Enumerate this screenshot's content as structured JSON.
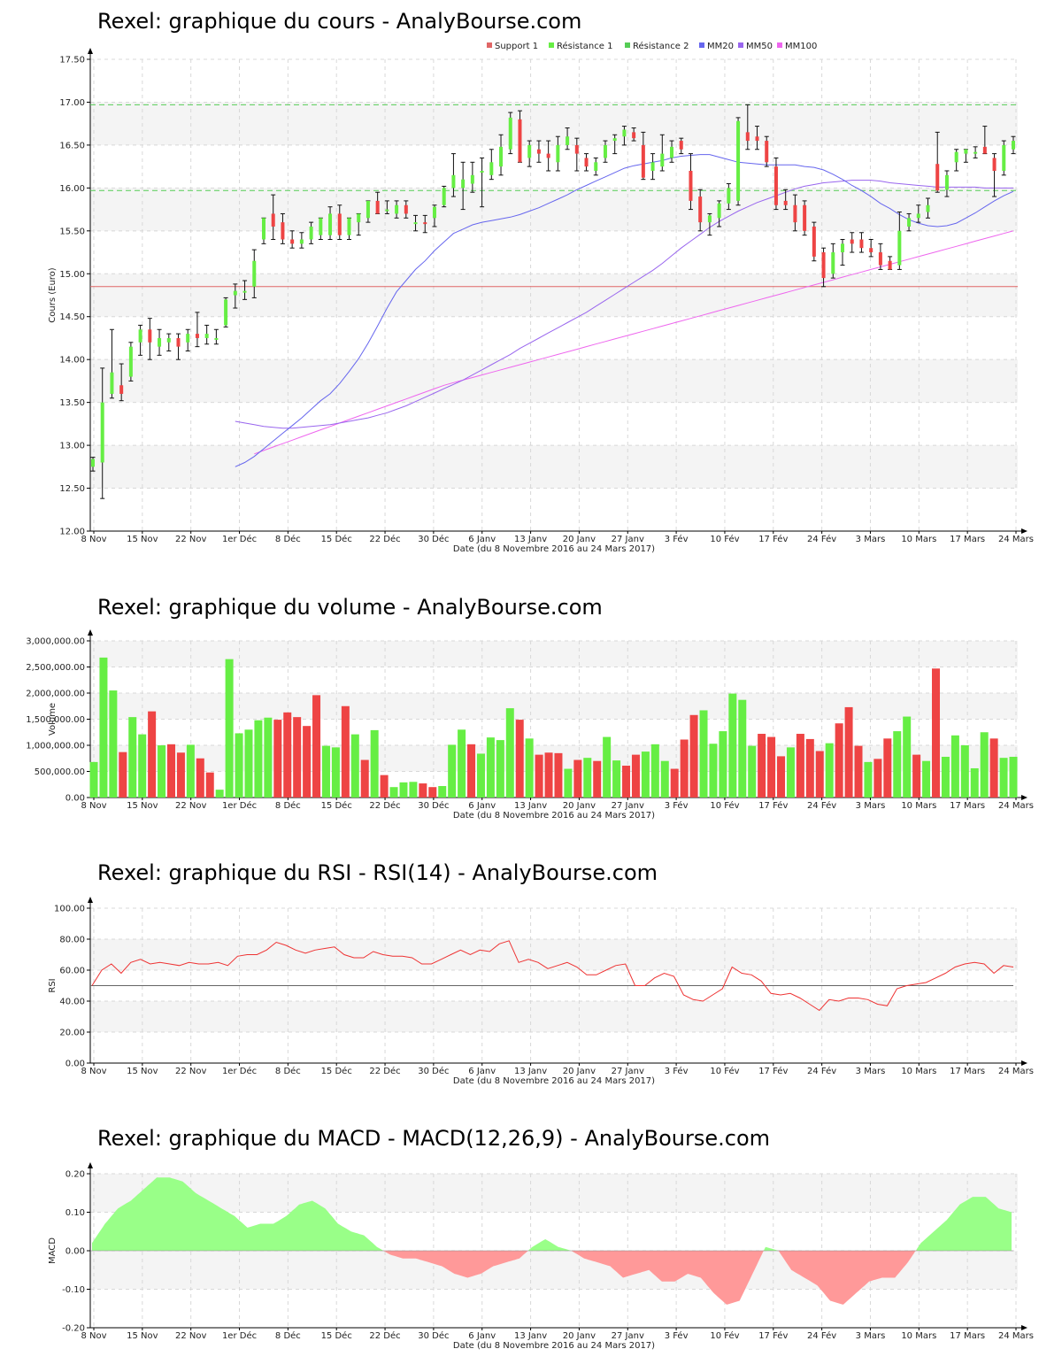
{
  "titles": {
    "price": "Rexel: graphique du cours - AnalyBourse.com",
    "volume": "Rexel: graphique du volume - AnalyBourse.com",
    "rsi": "Rexel: graphique du RSI - RSI(14) - AnalyBourse.com",
    "macd": "Rexel: graphique du MACD - MACD(12,26,9) - AnalyBourse.com"
  },
  "colors": {
    "up": "#66ee44",
    "down": "#ee4444",
    "support": "#e06666",
    "resistance": "#55cc55",
    "mm20": "#6666ee",
    "mm50": "#9966ee",
    "mm100": "#ee66ee",
    "rsi": "#ee3333",
    "macd_pos": "#99ff88",
    "macd_neg": "#ff9999",
    "band": "#f4f4f4",
    "grid": "#d8d8d8"
  },
  "x_axis": {
    "label": "Date (du 8 Novembre 2016 au 24 Mars 2017)",
    "ticks": [
      "8 Nov",
      "15 Nov",
      "22 Nov",
      "1er Déc",
      "8 Déc",
      "15 Déc",
      "22 Déc",
      "30 Déc",
      "6 Janv",
      "13 Janv",
      "20 Janv",
      "27 Janv",
      "3 Fév",
      "10 Fév",
      "17 Fév",
      "24 Fév",
      "3 Mars",
      "10 Mars",
      "17 Mars",
      "24 Mars"
    ]
  },
  "chart_data": [
    {
      "type": "candlestick",
      "title": "Rexel: graphique du cours - AnalyBourse.com",
      "ylabel": "Cours (Euro)",
      "ylim": [
        12.0,
        17.5
      ],
      "yticks": [
        "12.00",
        "12.50",
        "13.00",
        "13.50",
        "14.00",
        "14.50",
        "15.00",
        "15.50",
        "16.00",
        "16.50",
        "17.00",
        "17.50"
      ],
      "legend": [
        "Support 1",
        "Résistance 1",
        "Résistance 2",
        "MM20",
        "MM50",
        "MM100"
      ],
      "support_1": 14.85,
      "resistance_1": 15.97,
      "resistance_2": 16.97,
      "ohlc": [
        [
          12.75,
          12.86,
          12.7,
          12.84
        ],
        [
          12.8,
          13.9,
          12.38,
          13.5
        ],
        [
          13.6,
          14.35,
          13.55,
          13.85
        ],
        [
          13.7,
          13.95,
          13.52,
          13.6
        ],
        [
          13.8,
          14.2,
          13.75,
          14.15
        ],
        [
          14.2,
          14.4,
          14.05,
          14.35
        ],
        [
          14.35,
          14.48,
          14.0,
          14.2
        ],
        [
          14.15,
          14.35,
          14.05,
          14.25
        ],
        [
          14.2,
          14.3,
          14.1,
          14.25
        ],
        [
          14.25,
          14.3,
          14.0,
          14.15
        ],
        [
          14.2,
          14.35,
          14.1,
          14.3
        ],
        [
          14.3,
          14.55,
          14.15,
          14.25
        ],
        [
          14.25,
          14.4,
          14.18,
          14.3
        ],
        [
          14.25,
          14.35,
          14.18,
          14.25
        ],
        [
          14.4,
          14.72,
          14.38,
          14.7
        ],
        [
          14.75,
          14.88,
          14.6,
          14.8
        ],
        [
          14.78,
          14.92,
          14.7,
          14.8
        ],
        [
          14.85,
          15.28,
          14.72,
          15.15
        ],
        [
          15.4,
          15.65,
          15.35,
          15.65
        ],
        [
          15.7,
          15.92,
          15.4,
          15.55
        ],
        [
          15.6,
          15.7,
          15.35,
          15.4
        ],
        [
          15.4,
          15.5,
          15.3,
          15.35
        ],
        [
          15.35,
          15.48,
          15.3,
          15.4
        ],
        [
          15.4,
          15.6,
          15.35,
          15.55
        ],
        [
          15.45,
          15.65,
          15.4,
          15.65
        ],
        [
          15.45,
          15.78,
          15.4,
          15.7
        ],
        [
          15.7,
          15.8,
          15.4,
          15.45
        ],
        [
          15.45,
          15.65,
          15.4,
          15.65
        ],
        [
          15.6,
          15.7,
          15.45,
          15.7
        ],
        [
          15.65,
          15.85,
          15.6,
          15.85
        ],
        [
          15.85,
          15.95,
          15.7,
          15.7
        ],
        [
          15.75,
          15.85,
          15.7,
          15.75
        ],
        [
          15.7,
          15.85,
          15.65,
          15.8
        ],
        [
          15.8,
          15.85,
          15.65,
          15.7
        ],
        [
          15.6,
          15.68,
          15.5,
          15.6
        ],
        [
          15.6,
          15.68,
          15.48,
          15.58
        ],
        [
          15.65,
          15.8,
          15.55,
          15.78
        ],
        [
          15.8,
          16.02,
          15.78,
          16.0
        ],
        [
          16.0,
          16.4,
          15.9,
          16.15
        ],
        [
          16.0,
          16.3,
          15.75,
          16.1
        ],
        [
          16.05,
          16.3,
          15.95,
          16.15
        ],
        [
          16.2,
          16.35,
          15.78,
          16.2
        ],
        [
          16.15,
          16.45,
          16.1,
          16.3
        ],
        [
          16.25,
          16.62,
          16.15,
          16.48
        ],
        [
          16.45,
          16.88,
          16.4,
          16.82
        ],
        [
          16.8,
          16.9,
          16.3,
          16.3
        ],
        [
          16.35,
          16.55,
          16.25,
          16.5
        ],
        [
          16.45,
          16.55,
          16.3,
          16.4
        ],
        [
          16.4,
          16.55,
          16.2,
          16.35
        ],
        [
          16.3,
          16.6,
          16.2,
          16.5
        ],
        [
          16.5,
          16.7,
          16.45,
          16.6
        ],
        [
          16.5,
          16.58,
          16.2,
          16.4
        ],
        [
          16.35,
          16.4,
          16.2,
          16.25
        ],
        [
          16.2,
          16.35,
          16.15,
          16.3
        ],
        [
          16.35,
          16.55,
          16.3,
          16.5
        ],
        [
          16.55,
          16.62,
          16.4,
          16.58
        ],
        [
          16.6,
          16.72,
          16.5,
          16.68
        ],
        [
          16.65,
          16.7,
          16.55,
          16.58
        ],
        [
          16.5,
          16.65,
          16.1,
          16.12
        ],
        [
          16.2,
          16.4,
          16.1,
          16.3
        ],
        [
          16.25,
          16.62,
          16.2,
          16.4
        ],
        [
          16.35,
          16.55,
          16.3,
          16.48
        ],
        [
          16.55,
          16.58,
          16.4,
          16.45
        ],
        [
          16.2,
          16.4,
          15.75,
          15.85
        ],
        [
          15.9,
          15.98,
          15.5,
          15.6
        ],
        [
          15.6,
          15.7,
          15.45,
          15.68
        ],
        [
          15.65,
          15.85,
          15.55,
          15.82
        ],
        [
          15.82,
          16.05,
          15.75,
          16.0
        ],
        [
          15.85,
          16.82,
          15.8,
          16.78
        ],
        [
          16.65,
          16.97,
          16.45,
          16.55
        ],
        [
          16.6,
          16.72,
          16.45,
          16.55
        ],
        [
          16.55,
          16.6,
          16.25,
          16.3
        ],
        [
          16.25,
          16.35,
          15.75,
          15.8
        ],
        [
          15.85,
          15.98,
          15.75,
          15.8
        ],
        [
          15.8,
          15.92,
          15.5,
          15.6
        ],
        [
          15.8,
          15.85,
          15.45,
          15.5
        ],
        [
          15.55,
          15.6,
          15.15,
          15.2
        ],
        [
          15.25,
          15.3,
          14.85,
          14.95
        ],
        [
          15.0,
          15.35,
          14.95,
          15.25
        ],
        [
          15.25,
          15.4,
          15.1,
          15.35
        ],
        [
          15.4,
          15.48,
          15.25,
          15.35
        ],
        [
          15.4,
          15.48,
          15.25,
          15.3
        ],
        [
          15.3,
          15.4,
          15.2,
          15.25
        ],
        [
          15.25,
          15.35,
          15.05,
          15.1
        ],
        [
          15.15,
          15.2,
          15.05,
          15.05
        ],
        [
          15.1,
          15.72,
          15.05,
          15.5
        ],
        [
          15.55,
          15.7,
          15.5,
          15.65
        ],
        [
          15.65,
          15.8,
          15.6,
          15.7
        ],
        [
          15.72,
          15.88,
          15.65,
          15.8
        ],
        [
          16.28,
          16.65,
          15.95,
          15.97
        ],
        [
          15.98,
          16.2,
          15.9,
          16.15
        ],
        [
          16.3,
          16.45,
          16.2,
          16.42
        ],
        [
          16.4,
          16.45,
          16.3,
          16.45
        ],
        [
          16.4,
          16.48,
          16.35,
          16.42
        ],
        [
          16.48,
          16.72,
          16.4,
          16.4
        ],
        [
          16.35,
          16.4,
          15.9,
          16.2
        ],
        [
          16.2,
          16.55,
          16.15,
          16.5
        ],
        [
          16.45,
          16.6,
          16.4,
          16.55
        ]
      ],
      "mm20": [
        12.75,
        12.8,
        12.87,
        12.96,
        13.05,
        13.14,
        13.23,
        13.32,
        13.42,
        13.52,
        13.6,
        13.72,
        13.86,
        14.01,
        14.19,
        14.39,
        14.6,
        14.79,
        14.92,
        15.05,
        15.15,
        15.27,
        15.37,
        15.47,
        15.52,
        15.57,
        15.6,
        15.62,
        15.64,
        15.66,
        15.69,
        15.73,
        15.77,
        15.82,
        15.87,
        15.92,
        15.98,
        16.03,
        16.08,
        16.13,
        16.18,
        16.23,
        16.26,
        16.28,
        16.3,
        16.32,
        16.35,
        16.37,
        16.38,
        16.39,
        16.39,
        16.36,
        16.33,
        16.3,
        16.29,
        16.28,
        16.27,
        16.27,
        16.27,
        16.27,
        16.25,
        16.24,
        16.21,
        16.16,
        16.1,
        16.03,
        15.97,
        15.9,
        15.82,
        15.76,
        15.69,
        15.63,
        15.59,
        15.56,
        15.55,
        15.56,
        15.59,
        15.65,
        15.71,
        15.78,
        15.85,
        15.91,
        15.96
      ],
      "mm50": [
        13.28,
        13.26,
        13.24,
        13.22,
        13.21,
        13.2,
        13.2,
        13.21,
        13.22,
        13.23,
        13.24,
        13.26,
        13.28,
        13.3,
        13.32,
        13.35,
        13.38,
        13.42,
        13.46,
        13.51,
        13.56,
        13.61,
        13.66,
        13.71,
        13.76,
        13.82,
        13.88,
        13.94,
        14.0,
        14.06,
        14.13,
        14.19,
        14.25,
        14.31,
        14.37,
        14.43,
        14.49,
        14.55,
        14.62,
        14.69,
        14.76,
        14.83,
        14.9,
        14.97,
        15.04,
        15.12,
        15.21,
        15.3,
        15.38,
        15.46,
        15.54,
        15.61,
        15.67,
        15.73,
        15.78,
        15.83,
        15.87,
        15.91,
        15.95,
        15.99,
        16.02,
        16.04,
        16.06,
        16.07,
        16.08,
        16.09,
        16.09,
        16.09,
        16.08,
        16.06,
        16.05,
        16.04,
        16.03,
        16.02,
        16.01,
        16.01,
        16.01,
        16.01,
        16.01,
        16.0,
        16.0,
        16.0,
        16.0
      ],
      "mm100": [
        12.9,
        12.94,
        12.98,
        13.02,
        13.06,
        13.1,
        13.14,
        13.18,
        13.22,
        13.26,
        13.3,
        13.34,
        13.38,
        13.42,
        13.46,
        13.5,
        13.54,
        13.58,
        13.62,
        13.66,
        13.7,
        13.73,
        13.76,
        13.79,
        13.82,
        13.85,
        13.88,
        13.91,
        13.94,
        13.97,
        14.0,
        14.03,
        14.06,
        14.09,
        14.12,
        14.15,
        14.18,
        14.21,
        14.24,
        14.27,
        14.3,
        14.33,
        14.36,
        14.39,
        14.42,
        14.45,
        14.48,
        14.51,
        14.54,
        14.57,
        14.6,
        14.63,
        14.66,
        14.69,
        14.72,
        14.75,
        14.78,
        14.81,
        14.84,
        14.87,
        14.9,
        14.93,
        14.96,
        14.99,
        15.02,
        15.05,
        15.08,
        15.11,
        15.14,
        15.17,
        15.2,
        15.23,
        15.26,
        15.29,
        15.32,
        15.35,
        15.38,
        15.41,
        15.44,
        15.47,
        15.5
      ]
    },
    {
      "type": "bar",
      "title": "Rexel: graphique du volume - AnalyBourse.com",
      "ylabel": "Volume",
      "ylim": [
        0,
        3000000
      ],
      "yticks": [
        "0.00",
        "500,000.00",
        "1,000,000.00",
        "1,500,000.00",
        "2,000,000.00",
        "2,500,000.00",
        "3,000,000.00"
      ],
      "values": [
        680000,
        2680000,
        2050000,
        870000,
        1540000,
        1210000,
        1650000,
        1000000,
        1020000,
        860000,
        1010000,
        750000,
        480000,
        150000,
        2650000,
        1230000,
        1300000,
        1480000,
        1530000,
        1490000,
        1630000,
        1540000,
        1370000,
        1960000,
        990000,
        960000,
        1750000,
        1210000,
        720000,
        1290000,
        430000,
        200000,
        290000,
        300000,
        270000,
        200000,
        220000,
        1010000,
        1300000,
        1020000,
        840000,
        1150000,
        1100000,
        1710000,
        1490000,
        1130000,
        820000,
        860000,
        850000,
        550000,
        720000,
        760000,
        700000,
        1160000,
        710000,
        610000,
        820000,
        880000,
        1020000,
        700000,
        550000,
        1110000,
        1580000,
        1670000,
        1030000,
        1270000,
        1990000,
        1870000,
        990000,
        1220000,
        1160000,
        790000,
        960000,
        1220000,
        1120000,
        890000,
        1040000,
        1420000,
        1730000,
        990000,
        680000,
        740000,
        1130000,
        1270000,
        1550000,
        820000,
        700000,
        2470000,
        780000,
        1190000,
        1000000,
        560000,
        1250000,
        1130000,
        760000,
        780000
      ],
      "up": [
        1,
        1,
        1,
        0,
        1,
        1,
        0,
        1,
        0,
        0,
        1,
        0,
        0,
        1,
        1,
        1,
        1,
        1,
        1,
        0,
        0,
        0,
        0,
        0,
        1,
        1,
        0,
        1,
        0,
        1,
        0,
        1,
        1,
        1,
        0,
        0,
        1,
        1,
        1,
        0,
        1,
        1,
        1,
        1,
        0,
        1,
        0,
        0,
        0,
        1,
        0,
        1,
        0,
        1,
        1,
        0,
        0,
        1,
        1,
        1,
        0,
        0,
        0,
        1,
        1,
        1,
        1,
        1,
        1,
        0,
        0,
        0,
        1,
        0,
        0,
        0,
        1,
        0,
        0,
        0,
        1,
        0,
        0,
        1,
        1,
        0,
        1,
        0,
        1,
        1,
        1,
        1,
        1,
        0,
        1,
        1
      ]
    },
    {
      "type": "line",
      "title": "Rexel: graphique du RSI - RSI(14) - AnalyBourse.com",
      "ylabel": "RSI",
      "ylim": [
        0,
        100
      ],
      "yticks": [
        "0.00",
        "20.00",
        "40.00",
        "60.00",
        "80.00",
        "100.00"
      ],
      "reference_line": 50,
      "values": [
        50,
        60,
        64,
        58,
        65,
        67,
        64,
        65,
        64,
        63,
        65,
        64,
        64,
        65,
        63,
        69,
        70,
        70,
        73,
        78,
        76,
        73,
        71,
        73,
        74,
        75,
        70,
        68,
        68,
        72,
        70,
        69,
        69,
        68,
        64,
        64,
        67,
        70,
        73,
        70,
        73,
        72,
        77,
        79,
        65,
        67,
        65,
        61,
        63,
        65,
        62,
        57,
        57,
        60,
        63,
        64,
        50,
        50,
        55,
        58,
        56,
        44,
        41,
        40,
        44,
        48,
        62,
        58,
        57,
        53,
        45,
        44,
        45,
        42,
        38,
        34,
        41,
        40,
        42,
        42,
        41,
        38,
        37,
        48,
        50,
        51,
        52,
        55,
        58,
        62,
        64,
        65,
        64,
        58,
        63,
        62
      ]
    },
    {
      "type": "area",
      "title": "Rexel: graphique du MACD - MACD(12,26,9) - AnalyBourse.com",
      "ylabel": "MACD",
      "ylim": [
        -0.2,
        0.2
      ],
      "yticks": [
        "-0.20",
        "-0.10",
        "0.00",
        "0.10",
        "0.20"
      ],
      "values": [
        0.02,
        0.07,
        0.11,
        0.13,
        0.16,
        0.19,
        0.19,
        0.18,
        0.15,
        0.13,
        0.11,
        0.09,
        0.06,
        0.07,
        0.07,
        0.09,
        0.12,
        0.13,
        0.11,
        0.07,
        0.05,
        0.04,
        0.01,
        -0.01,
        -0.02,
        -0.02,
        -0.03,
        -0.04,
        -0.06,
        -0.07,
        -0.06,
        -0.04,
        -0.03,
        -0.02,
        0.01,
        0.03,
        0.01,
        0.0,
        -0.02,
        -0.03,
        -0.04,
        -0.07,
        -0.06,
        -0.05,
        -0.08,
        -0.08,
        -0.06,
        -0.07,
        -0.11,
        -0.14,
        -0.13,
        -0.06,
        0.01,
        0.0,
        -0.05,
        -0.07,
        -0.09,
        -0.13,
        -0.14,
        -0.11,
        -0.08,
        -0.07,
        -0.07,
        -0.03,
        0.02,
        0.05,
        0.08,
        0.12,
        0.14,
        0.14,
        0.11,
        0.1
      ]
    }
  ]
}
